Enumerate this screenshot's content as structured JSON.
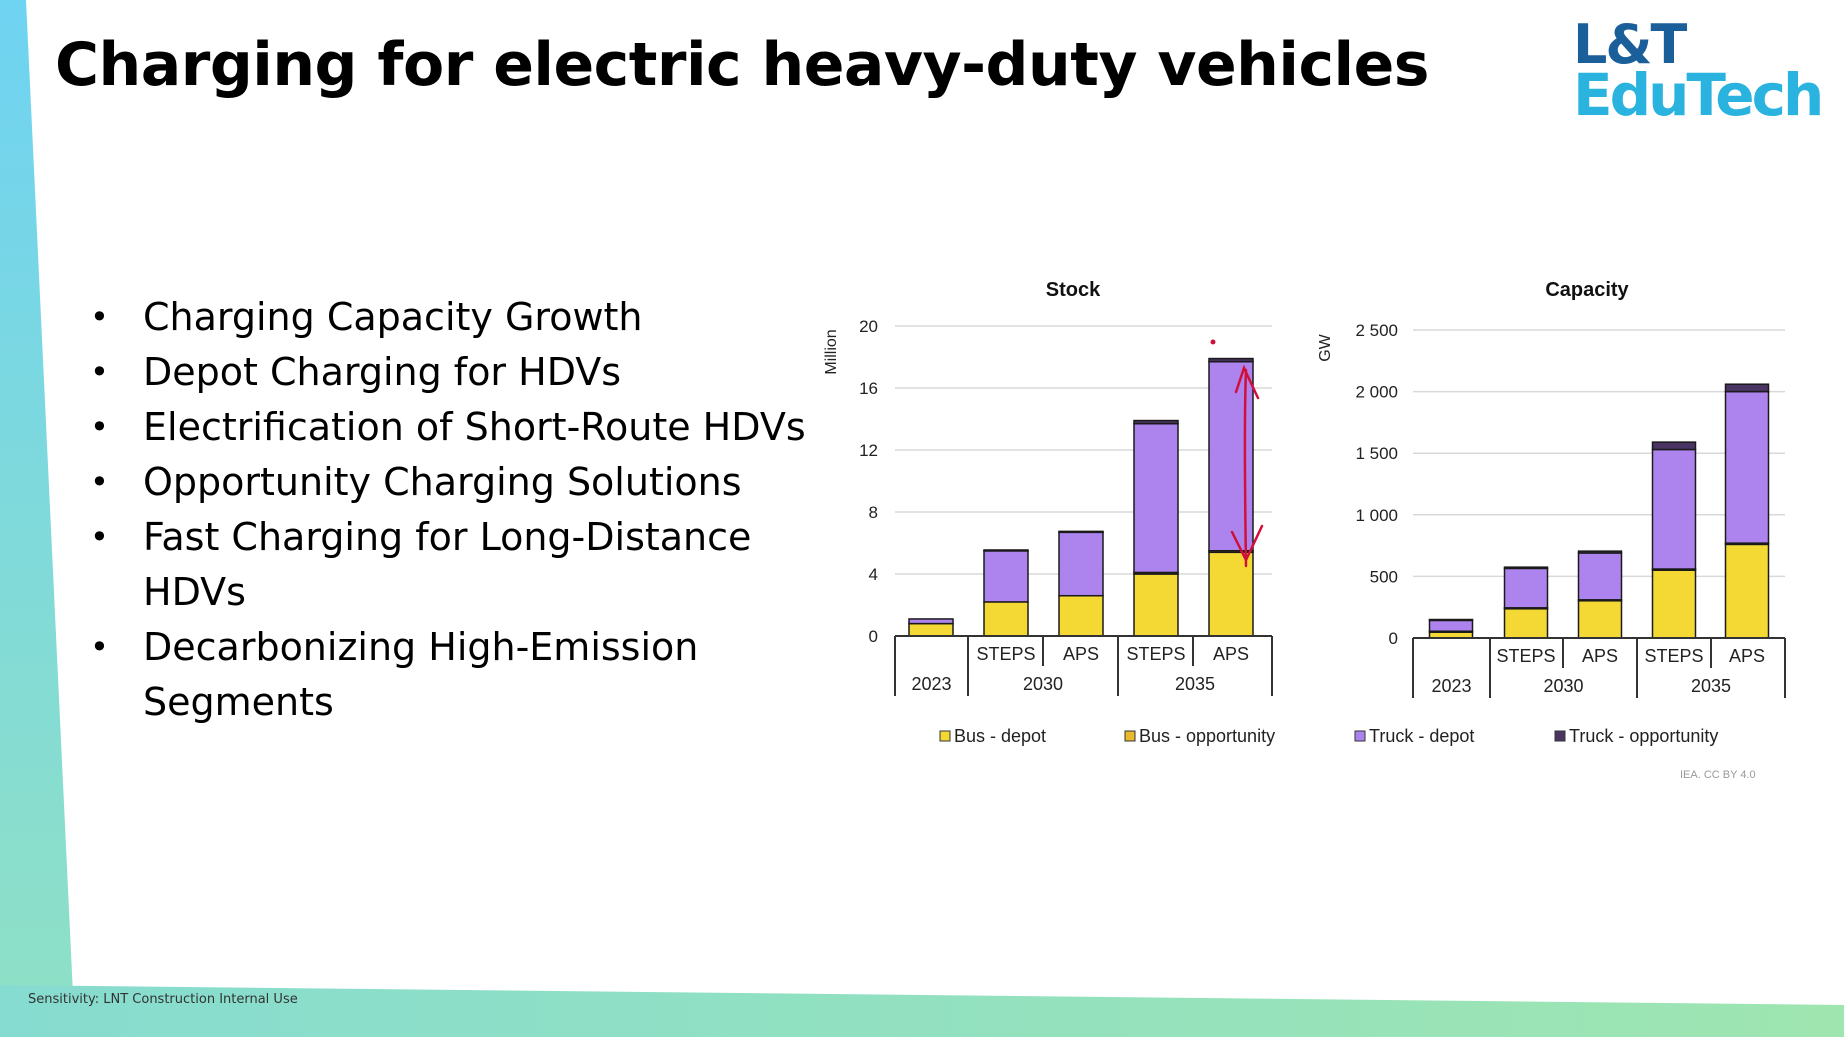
{
  "slide": {
    "title": "Charging for electric heavy-duty vehicles",
    "logo_line1": "L&T",
    "logo_line2": "EduTech",
    "logo_colors": {
      "line1": "#1a5e9a",
      "line2": "#2bb3e0"
    },
    "footer": "Sensitivity: LNT Construction Internal Use",
    "source_note": "IEA. CC BY 4.0"
  },
  "bullets": [
    "Charging Capacity Growth",
    "Depot Charging for HDVs",
    "Electrification of Short-Route HDVs",
    "Opportunity Charging Solutions",
    "Fast Charging for Long-Distance HDVs",
    "Decarbonizing High-Emission Segments"
  ],
  "legend": [
    {
      "label": "Bus - depot",
      "color": "#f4d935"
    },
    {
      "label": "Bus - opportunity",
      "color": "#e8b92a"
    },
    {
      "label": "Truck - depot",
      "color": "#ad84ee"
    },
    {
      "label": "Truck - opportunity",
      "color": "#4a3463"
    }
  ],
  "chart_data": [
    {
      "type": "bar",
      "stacked": true,
      "title": "Stock",
      "ylabel": "Million",
      "ylim": [
        0,
        20
      ],
      "yticks": [
        0,
        4,
        8,
        12,
        16,
        20
      ],
      "ytick_labels": [
        "0",
        "4",
        "8",
        "12",
        "16",
        "20"
      ],
      "categories": [
        "2023",
        "STEPS",
        "APS",
        "STEPS",
        "APS"
      ],
      "groups": [
        {
          "label": "2023",
          "categories": [
            ""
          ]
        },
        {
          "label": "2030",
          "categories": [
            "STEPS",
            "APS"
          ]
        },
        {
          "label": "2035",
          "categories": [
            "STEPS",
            "APS"
          ]
        }
      ],
      "series": [
        {
          "name": "Bus - depot",
          "values": [
            0.8,
            2.2,
            2.6,
            4.0,
            5.4
          ]
        },
        {
          "name": "Bus - opportunity",
          "values": [
            0.0,
            0.0,
            0.0,
            0.1,
            0.1
          ]
        },
        {
          "name": "Truck - depot",
          "values": [
            0.3,
            3.3,
            4.1,
            9.6,
            12.2
          ]
        },
        {
          "name": "Truck - opportunity",
          "values": [
            0.0,
            0.05,
            0.05,
            0.2,
            0.2
          ]
        }
      ]
    },
    {
      "type": "bar",
      "stacked": true,
      "title": "Capacity",
      "ylabel": "GW",
      "ylim": [
        0,
        2500
      ],
      "yticks": [
        0,
        500,
        1000,
        1500,
        2000,
        2500
      ],
      "ytick_labels": [
        "0",
        "500",
        "1 000",
        "1 500",
        "2 000",
        "2 500"
      ],
      "categories": [
        "2023",
        "STEPS",
        "APS",
        "STEPS",
        "APS"
      ],
      "groups": [
        {
          "label": "2023",
          "categories": [
            ""
          ]
        },
        {
          "label": "2030",
          "categories": [
            "STEPS",
            "APS"
          ]
        },
        {
          "label": "2035",
          "categories": [
            "STEPS",
            "APS"
          ]
        }
      ],
      "series": [
        {
          "name": "Bus - depot",
          "values": [
            50,
            240,
            305,
            550,
            760
          ]
        },
        {
          "name": "Bus - opportunity",
          "values": [
            5,
            5,
            5,
            10,
            10
          ]
        },
        {
          "name": "Truck - depot",
          "values": [
            90,
            320,
            380,
            970,
            1230
          ]
        },
        {
          "name": "Truck - opportunity",
          "values": [
            5,
            10,
            15,
            60,
            60
          ]
        }
      ]
    }
  ]
}
